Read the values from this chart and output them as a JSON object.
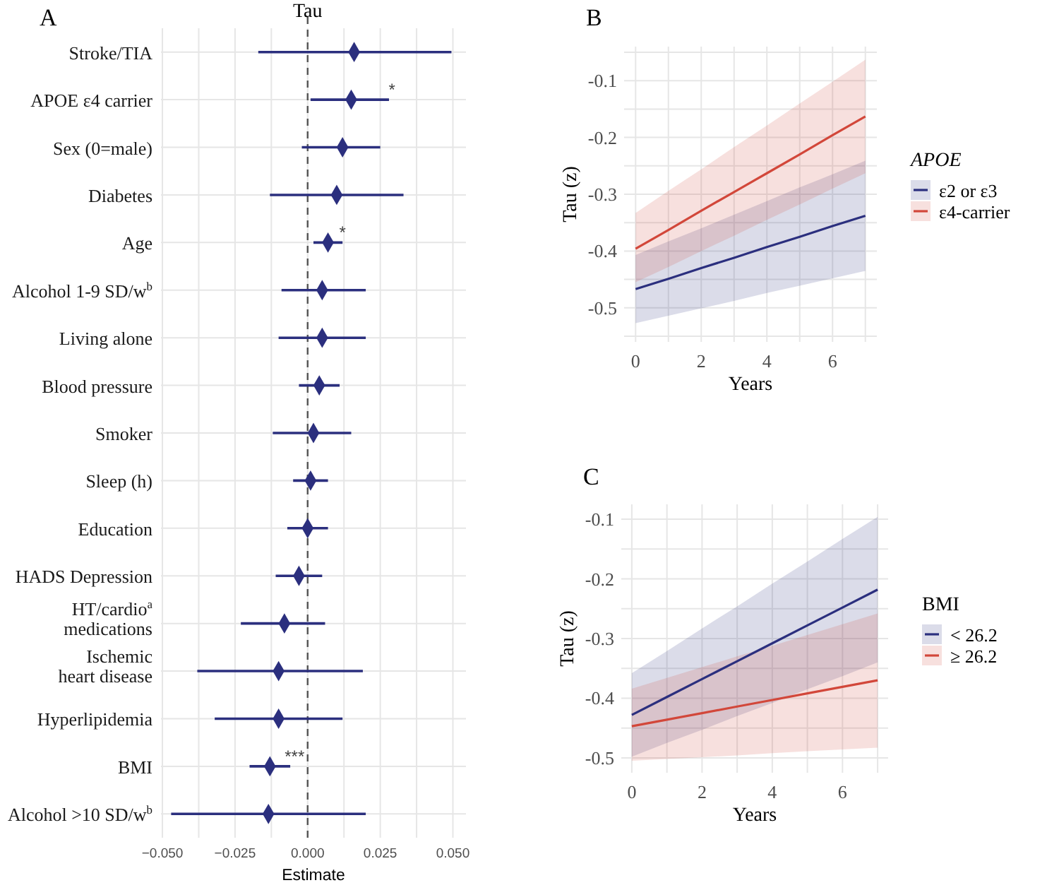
{
  "chart_data": [
    {
      "type": "scatter",
      "orientation": "horizontal",
      "title": "Tau",
      "xlabel": "Estimate",
      "annotations": [
        "A",
        {
          "text": "*",
          "x": 0.029,
          "y": "APOE ε4 carrier"
        },
        {
          "text": "*",
          "x": 0.012,
          "y": "Age"
        },
        {
          "text": "***",
          "x": -0.0045,
          "y": "BMI"
        }
      ],
      "categories": [
        "Stroke/TIA",
        "APOE ε4 carrier",
        "Sex (0=male)",
        "Diabetes",
        "Age",
        "Alcohol 1-9 SD/w$^{b}$",
        "Living alone",
        "Blood pressure",
        "Smoker",
        "Sleep (h)",
        "Education",
        "HADS Depression",
        "HT/cardio$^{a}$ medications",
        "Ischemic heart disease",
        "Hyperlipidemia",
        "BMI",
        "Alcohol >10 SD/w$^{b}$"
      ],
      "values": [
        0.016,
        0.015,
        0.012,
        0.01,
        0.007,
        0.005,
        0.005,
        0.004,
        0.002,
        0.001,
        0.0,
        -0.003,
        -0.008,
        -0.01,
        -0.01,
        -0.013,
        -0.0135
      ],
      "errors": [
        [
          -0.017,
          0.0495
        ],
        [
          0.001,
          0.028
        ],
        [
          -0.002,
          0.025
        ],
        [
          -0.013,
          0.033
        ],
        [
          0.002,
          0.012
        ],
        [
          -0.009,
          0.02
        ],
        [
          -0.01,
          0.02
        ],
        [
          -0.003,
          0.011
        ],
        [
          -0.012,
          0.015
        ],
        [
          -0.005,
          0.007
        ],
        [
          -0.007,
          0.007
        ],
        [
          -0.011,
          0.005
        ],
        [
          -0.023,
          0.006
        ],
        [
          -0.038,
          0.019
        ],
        [
          -0.032,
          0.012
        ],
        [
          -0.02,
          -0.006
        ],
        [
          -0.047,
          0.02
        ]
      ],
      "color": "#2b2f7e",
      "marker": "diamond",
      "xlim": [
        -0.0505,
        0.0545
      ],
      "xticks": [
        {
          "value": -0.05,
          "label": "−0.050"
        },
        {
          "value": -0.0375,
          "label": null
        },
        {
          "value": -0.025,
          "label": "−0.025"
        },
        {
          "value": -0.0125,
          "label": null
        },
        {
          "value": 0,
          "label": "0.000"
        },
        {
          "value": 0.0125,
          "label": null
        },
        {
          "value": 0.025,
          "label": "0.025"
        },
        {
          "value": 0.0375,
          "label": null
        },
        {
          "value": 0.05,
          "label": "0.050"
        }
      ],
      "ref_lines": [
        {
          "axis": "x",
          "value": 0,
          "color": "#555555",
          "line_style": "dashed"
        }
      ],
      "grid": true
    },
    {
      "type": "line",
      "xlabel": "Years",
      "ylabel": "Tau (z)",
      "legend_title": "APOE",
      "annotations": [
        "B"
      ],
      "legend": "right",
      "grid": true,
      "x": [
        0,
        1,
        2,
        3,
        4,
        5,
        6,
        7
      ],
      "xlim": [
        -0.35,
        7.35
      ],
      "xticks": [
        0,
        {
          "value": 1,
          "label": null
        },
        2,
        {
          "value": 3,
          "label": null
        },
        4,
        {
          "value": 5,
          "label": null
        },
        6,
        {
          "value": 7,
          "label": null
        }
      ],
      "ylim": [
        -0.56,
        -0.04
      ],
      "yticks": [
        {
          "value": -0.55,
          "label": null
        },
        -0.5,
        {
          "value": -0.45,
          "label": null
        },
        -0.4,
        {
          "value": -0.35,
          "label": null
        },
        -0.3,
        {
          "value": -0.25,
          "label": null
        },
        -0.2,
        {
          "value": -0.15,
          "label": null
        },
        -0.1,
        {
          "value": -0.05,
          "label": null
        }
      ],
      "series": [
        {
          "name": "ε2 or ε3",
          "color": "#2b2f7e",
          "values": [
            -0.467,
            -0.449,
            -0.43,
            -0.412,
            -0.393,
            -0.375,
            -0.356,
            -0.338
          ],
          "lower": [
            -0.527,
            -0.514,
            -0.501,
            -0.488,
            -0.474,
            -0.461,
            -0.448,
            -0.435
          ],
          "upper": [
            -0.407,
            -0.383,
            -0.36,
            -0.336,
            -0.312,
            -0.288,
            -0.265,
            -0.241
          ]
        },
        {
          "name": "ε4-carrier",
          "color": "#d2473a",
          "values": [
            -0.396,
            -0.363,
            -0.329,
            -0.296,
            -0.263,
            -0.23,
            -0.196,
            -0.163
          ],
          "lower": [
            -0.455,
            -0.428,
            -0.4,
            -0.373,
            -0.345,
            -0.318,
            -0.29,
            -0.263
          ],
          "upper": [
            -0.333,
            -0.294,
            -0.256,
            -0.217,
            -0.179,
            -0.14,
            -0.102,
            -0.063
          ]
        }
      ]
    },
    {
      "type": "line",
      "xlabel": "Years",
      "ylabel": "Tau (z)",
      "legend_title": "BMI",
      "annotations": [
        "C"
      ],
      "legend": "right",
      "grid": true,
      "x": [
        0,
        1,
        2,
        3,
        4,
        5,
        6,
        7
      ],
      "xlim": [
        -0.3,
        7.3
      ],
      "xticks": [
        0,
        {
          "value": 1,
          "label": null
        },
        2,
        {
          "value": 3,
          "label": null
        },
        4,
        {
          "value": 5,
          "label": null
        },
        6,
        {
          "value": 7,
          "label": null
        }
      ],
      "ylim": [
        -0.525,
        -0.075
      ],
      "yticks": [
        -0.5,
        {
          "value": -0.45,
          "label": null
        },
        -0.4,
        {
          "value": -0.35,
          "label": null
        },
        -0.3,
        {
          "value": -0.25,
          "label": null
        },
        -0.2,
        {
          "value": -0.15,
          "label": null
        },
        -0.1
      ],
      "series": [
        {
          "name": "< 26.2",
          "color": "#2b2f7e",
          "values": [
            -0.428,
            -0.398,
            -0.368,
            -0.338,
            -0.308,
            -0.278,
            -0.248,
            -0.218
          ],
          "lower": [
            -0.498,
            -0.475,
            -0.453,
            -0.43,
            -0.408,
            -0.385,
            -0.363,
            -0.34
          ],
          "upper": [
            -0.358,
            -0.321,
            -0.283,
            -0.246,
            -0.208,
            -0.171,
            -0.133,
            -0.096
          ]
        },
        {
          "name": "≥ 26.2",
          "color": "#d2473a",
          "values": [
            -0.447,
            -0.436,
            -0.425,
            -0.414,
            -0.403,
            -0.392,
            -0.381,
            -0.37
          ],
          "lower": [
            -0.505,
            -0.502,
            -0.499,
            -0.496,
            -0.492,
            -0.489,
            -0.486,
            -0.483
          ],
          "upper": [
            -0.384,
            -0.366,
            -0.348,
            -0.33,
            -0.312,
            -0.294,
            -0.276,
            -0.258
          ]
        }
      ]
    }
  ]
}
